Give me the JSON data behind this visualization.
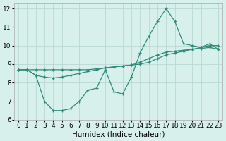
{
  "x": [
    0,
    1,
    2,
    3,
    4,
    5,
    6,
    7,
    8,
    9,
    10,
    11,
    12,
    13,
    14,
    15,
    16,
    17,
    18,
    19,
    20,
    21,
    22,
    23
  ],
  "line_flat": [
    8.7,
    8.7,
    8.7,
    8.7,
    8.7,
    8.7,
    8.7,
    8.7,
    8.7,
    8.75,
    8.8,
    8.85,
    8.9,
    8.95,
    9.0,
    9.1,
    9.3,
    9.5,
    9.6,
    9.7,
    9.8,
    9.9,
    10.0,
    10.0
  ],
  "line_diag": [
    8.7,
    8.7,
    8.4,
    8.3,
    8.25,
    8.3,
    8.4,
    8.5,
    8.6,
    8.7,
    8.8,
    8.85,
    8.9,
    8.95,
    9.1,
    9.3,
    9.5,
    9.65,
    9.7,
    9.75,
    9.8,
    9.85,
    9.9,
    9.8
  ],
  "line_zigzag": [
    8.7,
    8.7,
    8.4,
    7.0,
    6.5,
    6.5,
    6.6,
    7.0,
    7.6,
    7.7,
    8.7,
    7.5,
    7.4,
    8.3,
    9.6,
    10.5,
    11.3,
    12.0,
    11.3,
    10.1,
    10.0,
    9.9,
    10.1,
    9.8
  ],
  "color": "#2e8b7a",
  "bg_color": "#d8f0ec",
  "grid_color": "#b8d8d4",
  "xlim": [
    -0.5,
    23.5
  ],
  "ylim": [
    6,
    12.3
  ],
  "yticks": [
    6,
    7,
    8,
    9,
    10,
    11,
    12
  ],
  "xticks": [
    0,
    1,
    2,
    3,
    4,
    5,
    6,
    7,
    8,
    9,
    10,
    11,
    12,
    13,
    14,
    15,
    16,
    17,
    18,
    19,
    20,
    21,
    22,
    23
  ],
  "xlabel": "Humidex (Indice chaleur)",
  "xlabel_fontsize": 7.5,
  "tick_fontsize": 6.5
}
